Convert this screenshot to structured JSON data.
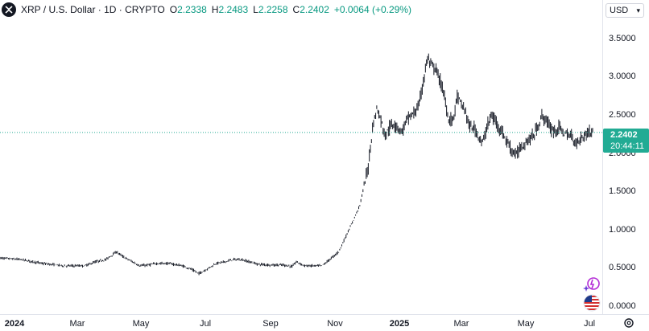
{
  "header": {
    "symbol": "XRP / U.S. Dollar · 1D · CRYPTO",
    "open_label": "O",
    "open": "2.2338",
    "high_label": "H",
    "high": "2.2483",
    "low_label": "L",
    "low": "2.2258",
    "close_label": "C",
    "close": "2.2402",
    "change": "+0.0064 (+0.29%)"
  },
  "currency": {
    "label": "USD",
    "caret": "▾"
  },
  "last_price": {
    "value": "2.2402",
    "countdown": "20:44:11"
  },
  "colors": {
    "up": "#089981",
    "price_label_bg": "#22ab94",
    "candle": "#131722",
    "price_line": "#22ab94"
  },
  "icons": {
    "logo": "xrp-logo-icon",
    "settings": "settings-icon",
    "flag": "us-flag-icon",
    "spark": "sparkle-icon"
  },
  "chart_data": {
    "type": "candlestick",
    "price_axis_ticks": [
      "3.5000",
      "3.0000",
      "2.5000",
      "2.0000",
      "1.5000",
      "1.0000",
      "0.5000",
      "0.0000"
    ],
    "time_axis_ticks": [
      {
        "label": "2024",
        "bold": true
      },
      {
        "label": "Mar",
        "bold": false
      },
      {
        "label": "May",
        "bold": false
      },
      {
        "label": "Jul",
        "bold": false
      },
      {
        "label": "Sep",
        "bold": false
      },
      {
        "label": "Nov",
        "bold": false
      },
      {
        "label": "2025",
        "bold": true
      },
      {
        "label": "Mar",
        "bold": false
      },
      {
        "label": "May",
        "bold": false
      },
      {
        "label": "Jul",
        "bold": false
      }
    ],
    "ylim": [
      0,
      3.7
    ],
    "series_path": [
      [
        0,
        0.62
      ],
      [
        10,
        0.6
      ],
      [
        20,
        0.55
      ],
      [
        30,
        0.52
      ],
      [
        40,
        0.52
      ],
      [
        45,
        0.57
      ],
      [
        50,
        0.6
      ],
      [
        55,
        0.7
      ],
      [
        58,
        0.64
      ],
      [
        62,
        0.58
      ],
      [
        66,
        0.52
      ],
      [
        70,
        0.53
      ],
      [
        74,
        0.55
      ],
      [
        80,
        0.55
      ],
      [
        86,
        0.52
      ],
      [
        90,
        0.48
      ],
      [
        94,
        0.42
      ],
      [
        98,
        0.48
      ],
      [
        102,
        0.55
      ],
      [
        106,
        0.57
      ],
      [
        110,
        0.6
      ],
      [
        114,
        0.6
      ],
      [
        118,
        0.57
      ],
      [
        122,
        0.54
      ],
      [
        128,
        0.53
      ],
      [
        134,
        0.53
      ],
      [
        138,
        0.51
      ],
      [
        140,
        0.57
      ],
      [
        144,
        0.52
      ],
      [
        148,
        0.52
      ],
      [
        152,
        0.52
      ],
      [
        154,
        0.56
      ],
      [
        160,
        0.7
      ],
      [
        166,
        1.05
      ],
      [
        170,
        1.3
      ],
      [
        172,
        1.55
      ],
      [
        174,
        1.8
      ],
      [
        176,
        2.3
      ],
      [
        178,
        2.55
      ],
      [
        180,
        2.4
      ],
      [
        182,
        2.2
      ],
      [
        184,
        2.3
      ],
      [
        186,
        2.35
      ],
      [
        188,
        2.3
      ],
      [
        190,
        2.25
      ],
      [
        192,
        2.4
      ],
      [
        194,
        2.45
      ],
      [
        196,
        2.5
      ],
      [
        198,
        2.6
      ],
      [
        200,
        2.9
      ],
      [
        202,
        3.2
      ],
      [
        204,
        3.1
      ],
      [
        206,
        3.05
      ],
      [
        208,
        2.9
      ],
      [
        210,
        2.7
      ],
      [
        212,
        2.4
      ],
      [
        214,
        2.4
      ],
      [
        216,
        2.7
      ],
      [
        218,
        2.6
      ],
      [
        220,
        2.5
      ],
      [
        222,
        2.3
      ],
      [
        224,
        2.3
      ],
      [
        226,
        2.2
      ],
      [
        228,
        2.1
      ],
      [
        230,
        2.3
      ],
      [
        232,
        2.45
      ],
      [
        234,
        2.4
      ],
      [
        236,
        2.3
      ],
      [
        238,
        2.2
      ],
      [
        240,
        2.1
      ],
      [
        242,
        2.0
      ],
      [
        244,
        1.95
      ],
      [
        246,
        2.05
      ],
      [
        248,
        2.1
      ],
      [
        250,
        2.15
      ],
      [
        252,
        2.2
      ],
      [
        254,
        2.3
      ],
      [
        256,
        2.45
      ],
      [
        258,
        2.4
      ],
      [
        260,
        2.3
      ],
      [
        262,
        2.25
      ],
      [
        264,
        2.3
      ],
      [
        266,
        2.25
      ],
      [
        268,
        2.2
      ],
      [
        270,
        2.2
      ],
      [
        272,
        2.1
      ],
      [
        274,
        2.15
      ],
      [
        276,
        2.2
      ],
      [
        278,
        2.25
      ],
      [
        280,
        2.24
      ]
    ],
    "x_domain": [
      0,
      280
    ]
  }
}
